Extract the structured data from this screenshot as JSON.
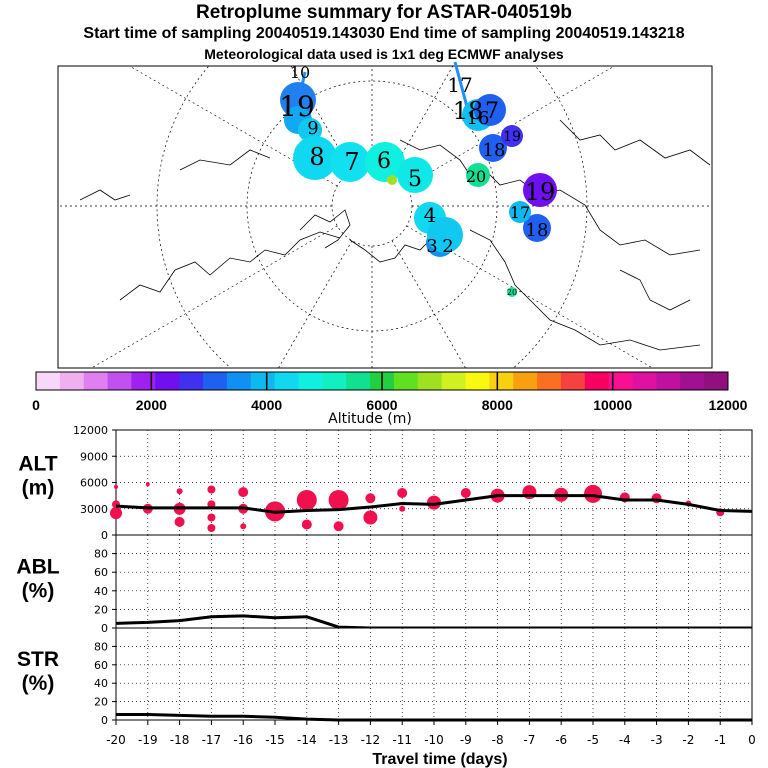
{
  "header": {
    "title": "Retroplume summary for ASTAR-040519b",
    "times": "Start time of sampling 20040519.143030     End time of sampling 20040519.143218",
    "meteo": "Meteorological data used is 1x1 deg ECMWF analyses"
  },
  "colorbar": {
    "label": "Altitude (m)",
    "ticks": [
      "0",
      "2000",
      "4000",
      "6000",
      "8000",
      "10000",
      "12000"
    ],
    "colors": [
      "#f8d8f8",
      "#f0b0f0",
      "#e080f0",
      "#c050f0",
      "#a020f0",
      "#7010f0",
      "#4030f0",
      "#2060f0",
      "#1090f0",
      "#10b8f0",
      "#10d8f0",
      "#10f0e0",
      "#10f0c0",
      "#10e090",
      "#20d040",
      "#60e020",
      "#a0e020",
      "#d0f020",
      "#f8f810",
      "#f8d010",
      "#f8a010",
      "#f87020",
      "#f84040",
      "#f80060",
      "#f81090",
      "#e010a0",
      "#c010a0",
      "#a01090",
      "#901080"
    ]
  },
  "map": {
    "plume_labels": [
      {
        "t": "10"
      },
      {
        "t": "19"
      },
      {
        "t": "9"
      },
      {
        "t": "8"
      },
      {
        "t": "7"
      },
      {
        "t": "6"
      },
      {
        "t": "5"
      },
      {
        "t": "4"
      },
      {
        "t": "3"
      },
      {
        "t": "2"
      },
      {
        "t": "17"
      },
      {
        "t": "18"
      },
      {
        "t": "16"
      },
      {
        "t": "7"
      },
      {
        "t": "20"
      },
      {
        "t": "19"
      },
      {
        "t": "18"
      },
      {
        "t": "17"
      },
      {
        "t": "20"
      },
      {
        "t": "18"
      },
      {
        "t": "19"
      },
      {
        "t": "20"
      }
    ]
  },
  "chart_data": [
    {
      "type": "line",
      "panel": "ALT",
      "ylabel": "ALT\n(m)",
      "ylim": [
        0,
        12000
      ],
      "yticks": [
        0,
        3000,
        6000,
        9000,
        12000
      ],
      "x": [
        -20,
        -19,
        -18,
        -17,
        -16,
        -15,
        -14,
        -13,
        -12,
        -11,
        -10,
        -9,
        -8,
        -7,
        -6,
        -5,
        -4,
        -3,
        -2,
        -1,
        0
      ],
      "values": [
        3300,
        3100,
        3100,
        3100,
        3100,
        2600,
        2800,
        2900,
        3200,
        3600,
        3500,
        4000,
        4500,
        4500,
        4500,
        4500,
        4000,
        4000,
        3500,
        2800,
        2700
      ],
      "points": [
        {
          "x": -20,
          "y": 2500,
          "r": 6
        },
        {
          "x": -20,
          "y": 3500,
          "r": 4
        },
        {
          "x": -20,
          "y": 5500,
          "r": 2
        },
        {
          "x": -19,
          "y": 3000,
          "r": 5
        },
        {
          "x": -19,
          "y": 5800,
          "r": 2
        },
        {
          "x": -18,
          "y": 1500,
          "r": 5
        },
        {
          "x": -18,
          "y": 3000,
          "r": 6
        },
        {
          "x": -18,
          "y": 5000,
          "r": 3
        },
        {
          "x": -17,
          "y": 800,
          "r": 4
        },
        {
          "x": -17,
          "y": 2000,
          "r": 4
        },
        {
          "x": -17,
          "y": 3500,
          "r": 4
        },
        {
          "x": -17,
          "y": 5200,
          "r": 4
        },
        {
          "x": -16,
          "y": 1000,
          "r": 3
        },
        {
          "x": -16,
          "y": 3000,
          "r": 5
        },
        {
          "x": -16,
          "y": 4900,
          "r": 5
        },
        {
          "x": -15,
          "y": 2700,
          "r": 10
        },
        {
          "x": -14,
          "y": 1200,
          "r": 5
        },
        {
          "x": -14,
          "y": 4000,
          "r": 10
        },
        {
          "x": -13,
          "y": 1000,
          "r": 5
        },
        {
          "x": -13,
          "y": 4000,
          "r": 10
        },
        {
          "x": -12,
          "y": 2000,
          "r": 7
        },
        {
          "x": -12,
          "y": 4200,
          "r": 5
        },
        {
          "x": -11,
          "y": 3000,
          "r": 3
        },
        {
          "x": -11,
          "y": 4800,
          "r": 5
        },
        {
          "x": -10,
          "y": 3700,
          "r": 7
        },
        {
          "x": -9,
          "y": 4800,
          "r": 5
        },
        {
          "x": -8,
          "y": 4500,
          "r": 7
        },
        {
          "x": -7,
          "y": 4900,
          "r": 7
        },
        {
          "x": -6,
          "y": 4600,
          "r": 7
        },
        {
          "x": -5,
          "y": 4700,
          "r": 9
        },
        {
          "x": -4,
          "y": 4300,
          "r": 5
        },
        {
          "x": -3,
          "y": 4200,
          "r": 5
        },
        {
          "x": -2,
          "y": 3600,
          "r": 3
        },
        {
          "x": -1,
          "y": 2600,
          "r": 4
        }
      ]
    },
    {
      "type": "line",
      "panel": "ABL",
      "ylabel": "ABL\n(%)",
      "ylim": [
        0,
        100
      ],
      "yticks": [
        0,
        20,
        40,
        60,
        80
      ],
      "x": [
        -20,
        -19,
        -18,
        -17,
        -16,
        -15,
        -14,
        -13,
        -12,
        -11,
        -10,
        -9,
        -8,
        -7,
        -6,
        -5,
        -4,
        -3,
        -2,
        -1,
        0
      ],
      "values": [
        5,
        6,
        8,
        12,
        13,
        11,
        12,
        1,
        0,
        0,
        0,
        0,
        0,
        0,
        0,
        0,
        0,
        0,
        0,
        0,
        0
      ]
    },
    {
      "type": "line",
      "panel": "STR",
      "ylabel": "STR\n(%)",
      "ylim": [
        0,
        100
      ],
      "yticks": [
        0,
        20,
        40,
        60,
        80
      ],
      "x": [
        -20,
        -19,
        -18,
        -17,
        -16,
        -15,
        -14,
        -13,
        -12,
        -11,
        -10,
        -9,
        -8,
        -7,
        -6,
        -5,
        -4,
        -3,
        -2,
        -1,
        0
      ],
      "values": [
        6,
        6,
        5,
        4,
        4,
        3,
        1,
        0,
        0,
        0,
        0,
        0,
        0,
        0,
        0,
        0,
        0,
        0,
        0,
        0,
        0
      ],
      "xlabel": "Travel time (days)",
      "xticks": [
        "-20",
        "-19",
        "-18",
        "-17",
        "-16",
        "-15",
        "-14",
        "-13",
        "-12",
        "-11",
        "-10",
        "-9",
        "-8",
        "-7",
        "-6",
        "-5",
        "-4",
        "-3",
        "-2",
        "-1",
        "0"
      ]
    }
  ]
}
